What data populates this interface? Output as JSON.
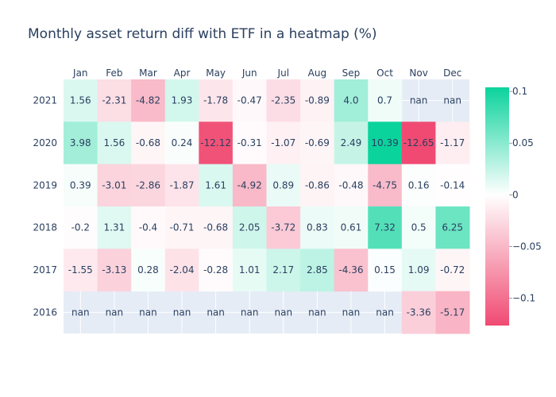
{
  "chart_data": {
    "type": "heatmap",
    "title": "Monthly asset return diff with ETF in a heatmap (%)",
    "x_categories": [
      "Jan",
      "Feb",
      "Mar",
      "Apr",
      "May",
      "Jun",
      "Jul",
      "Aug",
      "Sep",
      "Oct",
      "Nov",
      "Dec"
    ],
    "y_categories": [
      "2021",
      "2020",
      "2019",
      "2018",
      "2017",
      "2016"
    ],
    "values": [
      [
        1.56,
        -2.31,
        -4.82,
        1.93,
        -1.78,
        -0.47,
        -2.35,
        -0.89,
        4.0,
        0.7,
        null,
        null
      ],
      [
        3.98,
        1.56,
        -0.68,
        0.24,
        -12.12,
        -0.31,
        -1.07,
        -0.69,
        2.49,
        10.39,
        -12.65,
        -1.17
      ],
      [
        0.39,
        -3.01,
        -2.86,
        -1.87,
        1.61,
        -4.92,
        0.89,
        -0.86,
        -0.48,
        -4.75,
        0.16,
        -0.14
      ],
      [
        -0.2,
        1.31,
        -0.4,
        -0.71,
        -0.68,
        2.05,
        -3.72,
        0.83,
        0.61,
        7.32,
        0.5,
        6.25
      ],
      [
        -1.55,
        -3.13,
        0.28,
        -2.04,
        -0.28,
        1.01,
        2.17,
        2.85,
        -4.36,
        0.15,
        1.09,
        -0.72
      ],
      [
        null,
        null,
        null,
        null,
        null,
        null,
        null,
        null,
        null,
        null,
        -3.36,
        -5.17
      ]
    ],
    "cell_text": [
      [
        "1.56",
        "-2.31",
        "-4.82",
        "1.93",
        "-1.78",
        "-0.47",
        "-2.35",
        "-0.89",
        "4.0",
        "0.7",
        "nan",
        "nan"
      ],
      [
        "3.98",
        "1.56",
        "-0.68",
        "0.24",
        "-12.12",
        "-0.31",
        "-1.07",
        "-0.69",
        "2.49",
        "10.39",
        "-12.65",
        "-1.17"
      ],
      [
        "0.39",
        "-3.01",
        "-2.86",
        "-1.87",
        "1.61",
        "-4.92",
        "0.89",
        "-0.86",
        "-0.48",
        "-4.75",
        "0.16",
        "-0.14"
      ],
      [
        "-0.2",
        "1.31",
        "-0.4",
        "-0.71",
        "-0.68",
        "2.05",
        "-3.72",
        "0.83",
        "0.61",
        "7.32",
        "0.5",
        "6.25"
      ],
      [
        "-1.55",
        "-3.13",
        "0.28",
        "-2.04",
        "-0.28",
        "1.01",
        "2.17",
        "2.85",
        "-4.36",
        "0.15",
        "1.09",
        "-0.72"
      ],
      [
        "nan",
        "nan",
        "nan",
        "nan",
        "nan",
        "nan",
        "nan",
        "nan",
        "nan",
        "nan",
        "-3.36",
        "-5.17"
      ]
    ],
    "colorscale": {
      "negative": "#f04a72",
      "mid": "#ffffff",
      "positive": "#0bd39c",
      "zmin": -0.1265,
      "zmax": 0.1039
    },
    "colorbar": {
      "tick_values": [
        0.1,
        0.05,
        0,
        -0.05,
        -0.1
      ],
      "tick_labels": [
        "0.1",
        "0.05",
        "0",
        "−0.05",
        "−0.1"
      ]
    },
    "missing_color": "#e5ecf6",
    "xaxis_side": "top",
    "grid": true,
    "legend": "colorbar-right"
  }
}
